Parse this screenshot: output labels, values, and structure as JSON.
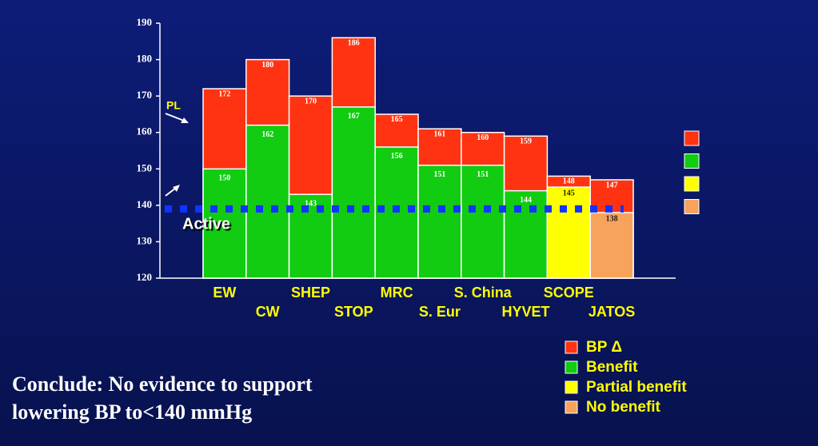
{
  "chart_data": {
    "type": "bar",
    "categories": [
      "EW",
      "CW",
      "SHEP",
      "STOP",
      "MRC",
      "S. Eur",
      "S. China",
      "HYVET",
      "SCOPE",
      "JATOS"
    ],
    "series": [
      {
        "color": "#ff3311",
        "values": [
          172,
          180,
          170,
          186,
          165,
          161,
          160,
          159,
          148,
          147
        ]
      },
      {
        "colors": [
          "#11cc11",
          "#11cc11",
          "#11cc11",
          "#11cc11",
          "#11cc11",
          "#11cc11",
          "#11cc11",
          "#11cc11",
          "#ffff00",
          "#f7a35c"
        ],
        "values": [
          150,
          162,
          143,
          167,
          156,
          151,
          151,
          144,
          145,
          138
        ]
      }
    ],
    "ylim": [
      120,
      190
    ],
    "yticks": [
      120,
      130,
      140,
      150,
      160,
      170,
      180,
      190
    ],
    "reference_line": {
      "value": 139,
      "color": "#1133ff"
    },
    "annotations": [
      "PL",
      "Active"
    ],
    "legend": [
      {
        "label": "BP Δ",
        "color": "#ff3311"
      },
      {
        "label": "Benefit",
        "color": "#11cc11"
      },
      {
        "label": "Partial benefit",
        "color": "#ffff00"
      },
      {
        "label": "No benefit",
        "color": "#f7a35c"
      }
    ],
    "conclusion": [
      "Conclude: No evidence to support",
      "lowering BP to<140 mmHg"
    ]
  }
}
